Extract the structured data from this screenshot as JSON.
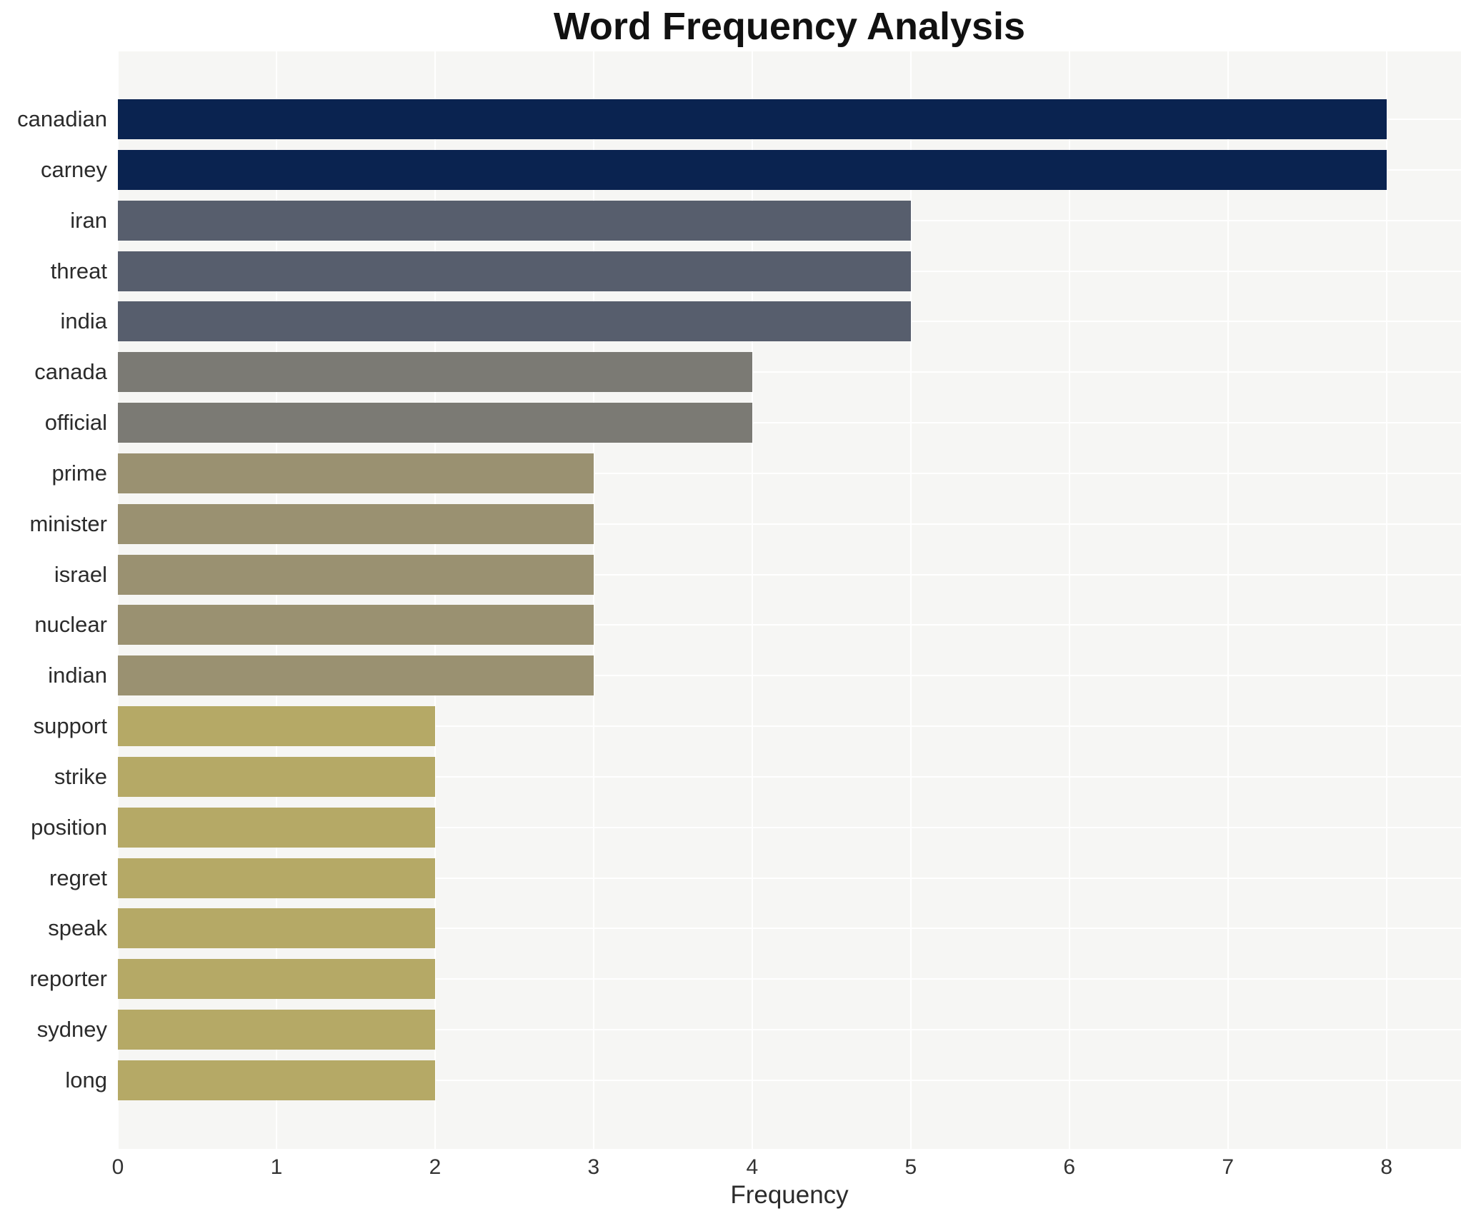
{
  "page": {
    "title": "Word Frequency Analysis"
  },
  "chart_data": {
    "type": "bar",
    "orientation": "horizontal",
    "title": "Word Frequency Analysis",
    "xlabel": "Frequency",
    "ylabel": "",
    "categories": [
      "canadian",
      "carney",
      "iran",
      "threat",
      "india",
      "canada",
      "official",
      "prime",
      "minister",
      "israel",
      "nuclear",
      "indian",
      "support",
      "strike",
      "position",
      "regret",
      "speak",
      "reporter",
      "sydney",
      "long"
    ],
    "values": [
      8,
      8,
      5,
      5,
      5,
      4,
      4,
      3,
      3,
      3,
      3,
      3,
      2,
      2,
      2,
      2,
      2,
      2,
      2,
      2
    ],
    "x_ticks": [
      0,
      1,
      2,
      3,
      4,
      5,
      6,
      7,
      8
    ],
    "xlim": [
      0,
      8.47
    ],
    "grid": true,
    "legend": false,
    "plot_bg_color": "#f6f6f4",
    "grid_color": "#ffffff",
    "value_colors": {
      "8": "#0a2350",
      "5": "#575e6d",
      "4": "#7b7a74",
      "3": "#9a9171",
      "2": "#b5a966"
    }
  }
}
